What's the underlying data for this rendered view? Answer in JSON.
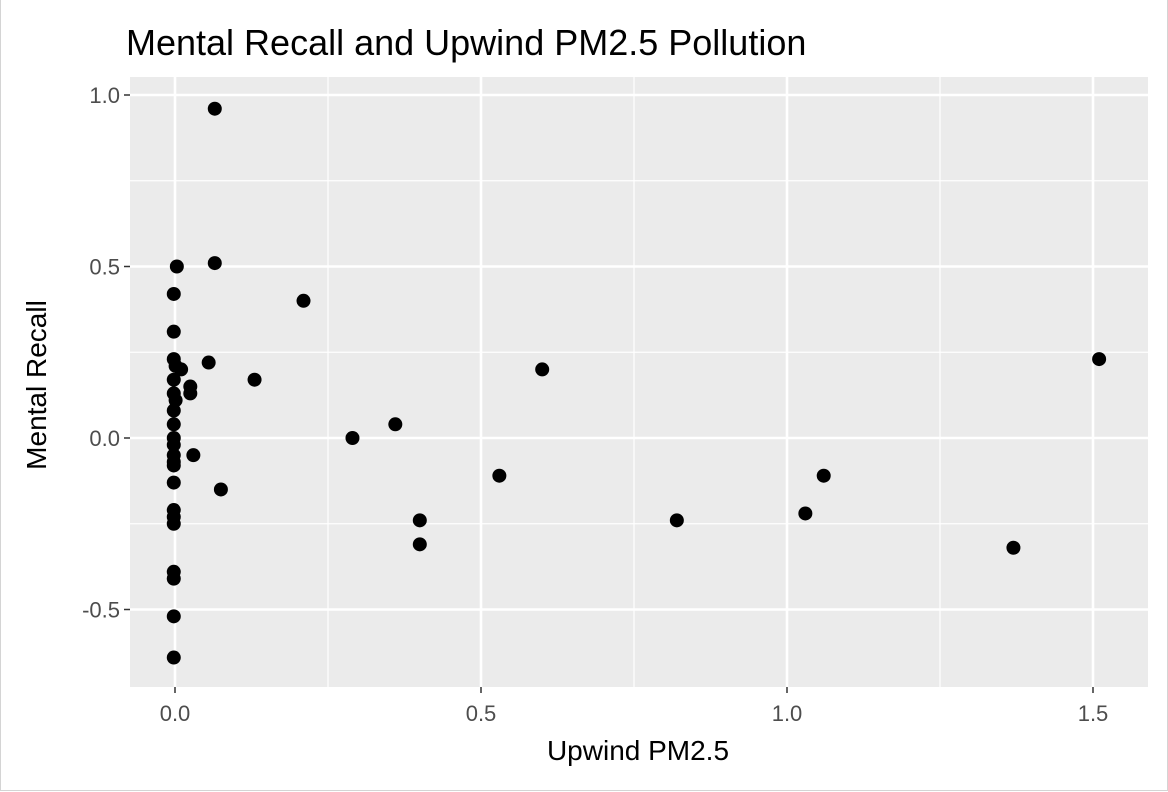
{
  "chart_data": {
    "type": "scatter",
    "title": "Mental Recall and Upwind PM2.5 Pollution",
    "xlabel": "Upwind PM2.5",
    "ylabel": "Mental Recall",
    "xlim": [
      -0.145,
      1.5
    ],
    "ylim": [
      -0.72,
      1.01
    ],
    "x_ticks": [
      0.0,
      0.5,
      1.0,
      1.5
    ],
    "x_tick_labels": [
      "0.0",
      "0.5",
      "1.0",
      "1.5"
    ],
    "x_minor": [
      0.25,
      0.75,
      1.25
    ],
    "y_ticks": [
      1.0,
      0.5,
      0.0,
      -0.5
    ],
    "y_tick_labels": [
      "1.0",
      "0.5",
      "0.0",
      "-0.5"
    ],
    "y_minor": [
      0.75,
      0.25,
      -0.25
    ],
    "grid": true,
    "background": "#ebebeb",
    "grid_color": "#ffffff",
    "point_color": "#000000",
    "points": [
      {
        "x": 0.065,
        "y": 0.96
      },
      {
        "x": 0.065,
        "y": 0.51
      },
      {
        "x": 0.003,
        "y": 0.5
      },
      {
        "x": -0.002,
        "y": 0.42
      },
      {
        "x": 0.21,
        "y": 0.4
      },
      {
        "x": -0.002,
        "y": 0.31
      },
      {
        "x": -0.002,
        "y": 0.23
      },
      {
        "x": 0.001,
        "y": 0.21
      },
      {
        "x": 0.01,
        "y": 0.2
      },
      {
        "x": 0.055,
        "y": 0.22
      },
      {
        "x": 0.6,
        "y": 0.2
      },
      {
        "x": 1.51,
        "y": 0.23
      },
      {
        "x": -0.002,
        "y": 0.17
      },
      {
        "x": 0.13,
        "y": 0.17
      },
      {
        "x": 0.025,
        "y": 0.15
      },
      {
        "x": 0.025,
        "y": 0.13
      },
      {
        "x": -0.002,
        "y": 0.13
      },
      {
        "x": 0.001,
        "y": 0.11
      },
      {
        "x": -0.002,
        "y": 0.08
      },
      {
        "x": -0.002,
        "y": 0.04
      },
      {
        "x": 0.36,
        "y": 0.04
      },
      {
        "x": 0.29,
        "y": 0.0
      },
      {
        "x": -0.002,
        "y": 0.0
      },
      {
        "x": -0.002,
        "y": -0.02
      },
      {
        "x": -0.002,
        "y": -0.05
      },
      {
        "x": 0.03,
        "y": -0.05
      },
      {
        "x": -0.002,
        "y": -0.07
      },
      {
        "x": -0.002,
        "y": -0.08
      },
      {
        "x": 0.53,
        "y": -0.11
      },
      {
        "x": 1.06,
        "y": -0.11
      },
      {
        "x": -0.002,
        "y": -0.13
      },
      {
        "x": 0.075,
        "y": -0.15
      },
      {
        "x": -0.002,
        "y": -0.21
      },
      {
        "x": -0.002,
        "y": -0.23
      },
      {
        "x": -0.002,
        "y": -0.25
      },
      {
        "x": 0.4,
        "y": -0.24
      },
      {
        "x": 0.82,
        "y": -0.24
      },
      {
        "x": 1.03,
        "y": -0.22
      },
      {
        "x": 0.4,
        "y": -0.31
      },
      {
        "x": 1.37,
        "y": -0.32
      },
      {
        "x": -0.002,
        "y": -0.39
      },
      {
        "x": -0.002,
        "y": -0.41
      },
      {
        "x": -0.002,
        "y": -0.52
      },
      {
        "x": -0.002,
        "y": -0.64
      }
    ]
  }
}
